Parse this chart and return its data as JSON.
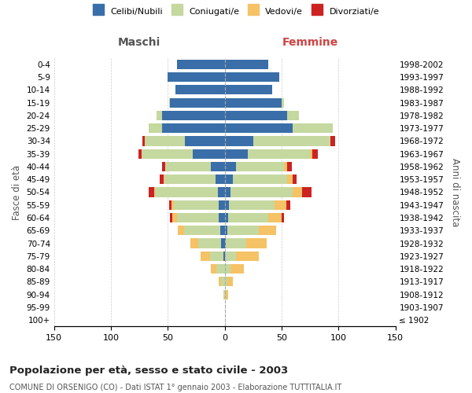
{
  "age_groups": [
    "100+",
    "95-99",
    "90-94",
    "85-89",
    "80-84",
    "75-79",
    "70-74",
    "65-69",
    "60-64",
    "55-59",
    "50-54",
    "45-49",
    "40-44",
    "35-39",
    "30-34",
    "25-29",
    "20-24",
    "15-19",
    "10-14",
    "5-9",
    "0-4"
  ],
  "birth_years": [
    "≤ 1902",
    "1903-1907",
    "1908-1912",
    "1913-1917",
    "1918-1922",
    "1923-1927",
    "1928-1932",
    "1933-1937",
    "1938-1942",
    "1943-1947",
    "1948-1952",
    "1953-1957",
    "1958-1962",
    "1963-1967",
    "1968-1972",
    "1973-1977",
    "1978-1982",
    "1983-1987",
    "1988-1992",
    "1993-1997",
    "1998-2002"
  ],
  "maschi": {
    "celibi": [
      0,
      0,
      0,
      0,
      0,
      1,
      3,
      4,
      5,
      5,
      6,
      8,
      12,
      28,
      35,
      55,
      55,
      48,
      43,
      50,
      42
    ],
    "coniugati": [
      0,
      0,
      1,
      3,
      7,
      12,
      20,
      32,
      37,
      40,
      55,
      45,
      40,
      45,
      35,
      12,
      5,
      1,
      0,
      0,
      0
    ],
    "vedovi": [
      0,
      0,
      0,
      2,
      5,
      8,
      7,
      5,
      4,
      2,
      1,
      1,
      0,
      0,
      0,
      0,
      0,
      0,
      0,
      0,
      0
    ],
    "divorziati": [
      0,
      0,
      0,
      0,
      0,
      0,
      0,
      0,
      2,
      2,
      5,
      3,
      3,
      3,
      2,
      0,
      0,
      0,
      0,
      0,
      0
    ]
  },
  "femmine": {
    "nubili": [
      0,
      0,
      0,
      0,
      0,
      0,
      1,
      2,
      3,
      4,
      5,
      7,
      10,
      20,
      25,
      60,
      55,
      50,
      42,
      48,
      38
    ],
    "coniugate": [
      0,
      0,
      1,
      2,
      5,
      10,
      18,
      28,
      35,
      40,
      55,
      48,
      42,
      55,
      68,
      35,
      10,
      2,
      0,
      0,
      0
    ],
    "vedove": [
      0,
      0,
      2,
      5,
      12,
      20,
      18,
      15,
      12,
      10,
      8,
      5,
      3,
      2,
      0,
      0,
      0,
      0,
      0,
      0,
      0
    ],
    "divorziate": [
      0,
      0,
      0,
      0,
      0,
      0,
      0,
      0,
      2,
      4,
      8,
      3,
      4,
      5,
      4,
      0,
      0,
      0,
      0,
      0,
      0
    ]
  },
  "colors": {
    "celibi": "#3a6ea8",
    "coniugati": "#c5d8a0",
    "vedovi": "#f5c265",
    "divorziati": "#cc2222"
  },
  "title": "Popolazione per età, sesso e stato civile - 2003",
  "subtitle": "COMUNE DI ORSENIGO (CO) - Dati ISTAT 1° gennaio 2003 - Elaborazione TUTTITALIA.IT",
  "xlabel_left": "Maschi",
  "xlabel_right": "Femmine",
  "ylabel_left": "Fasce di età",
  "ylabel_right": "Anni di nascita",
  "legend_labels": [
    "Celibi/Nubili",
    "Coniugati/e",
    "Vedovi/e",
    "Divorziati/e"
  ],
  "xlim": 150,
  "background_color": "#ffffff",
  "grid_color": "#cccccc"
}
